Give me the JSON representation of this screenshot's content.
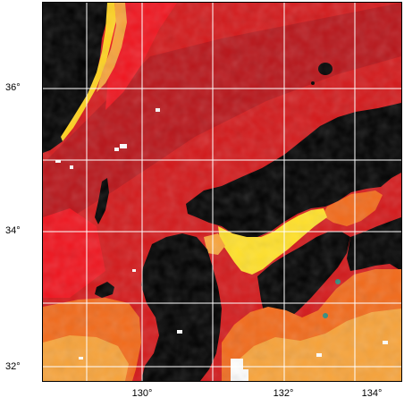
{
  "map": {
    "lat_labels": [
      "36°",
      "34°",
      "32°"
    ],
    "lon_labels": [
      "130°",
      "132°",
      "134°"
    ],
    "colors": {
      "land": "#000000",
      "sea_deep": "#cc1a14",
      "sea_red": "#f0141e",
      "sea_orange": "#f26a1a",
      "sea_light_orange": "#f7a33a",
      "sea_yellow": "#ffe02a",
      "cloud": "#ffffff",
      "grid": "#ffffff"
    }
  }
}
